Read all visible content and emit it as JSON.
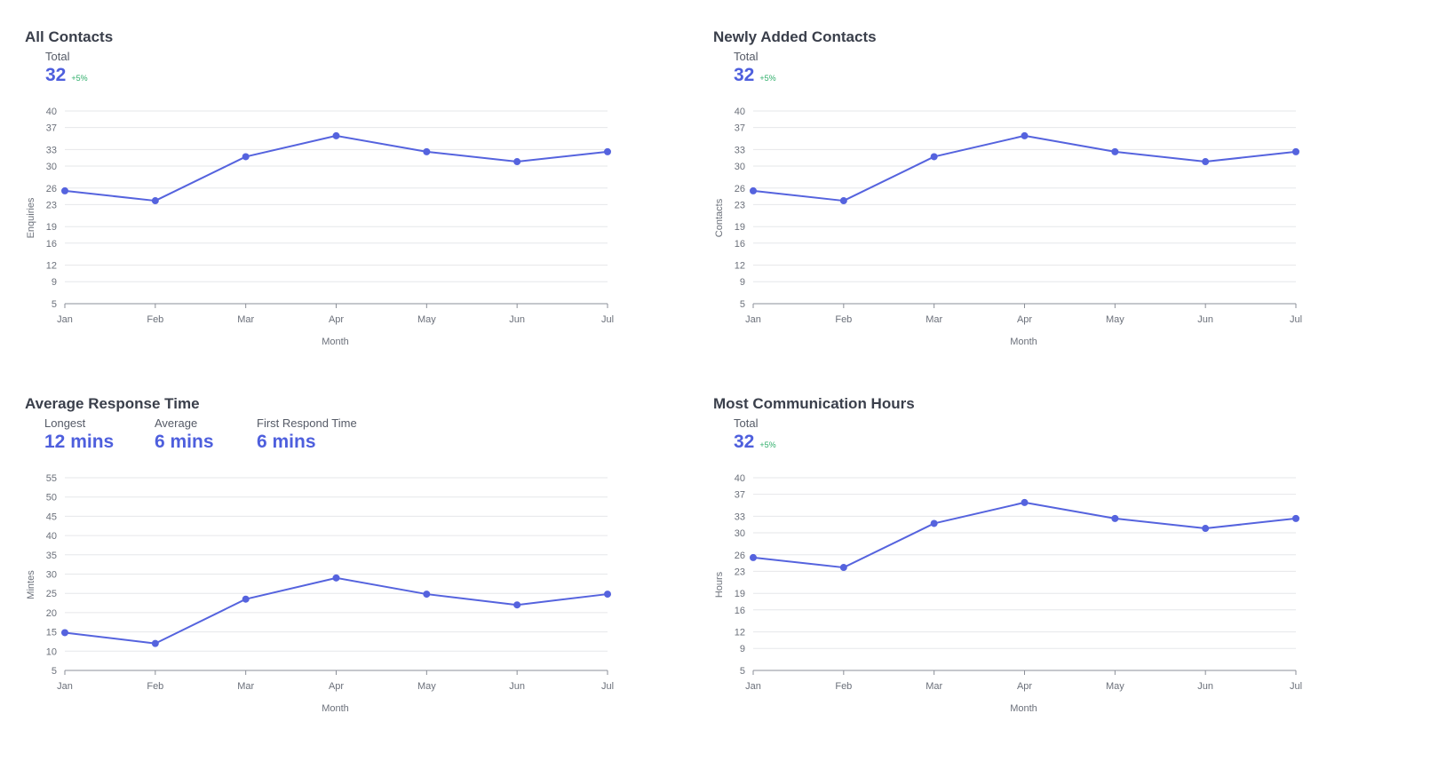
{
  "colors": {
    "line": "#5563de",
    "point": "#5563de",
    "value": "#4e5fdd",
    "change": "#2fae6a"
  },
  "panels": [
    {
      "title": "All Contacts",
      "stats": [
        {
          "label": "Total",
          "value": "32",
          "change": "+5%"
        }
      ]
    },
    {
      "title": "Newly Added Contacts",
      "stats": [
        {
          "label": "Total",
          "value": "32",
          "change": "+5%"
        }
      ]
    },
    {
      "title": "Average Response Time",
      "stats": [
        {
          "label": "Longest",
          "value": "12 mins",
          "change": ""
        },
        {
          "label": "Average",
          "value": "6 mins",
          "change": ""
        },
        {
          "label": "First Respond Time",
          "value": "6 mins",
          "change": ""
        }
      ]
    },
    {
      "title": "Most Communication Hours",
      "stats": [
        {
          "label": "Total",
          "value": "32",
          "change": "+5%"
        }
      ]
    }
  ],
  "chart_data": [
    {
      "type": "line",
      "categories": [
        "Jan",
        "Feb",
        "Mar",
        "Apr",
        "May",
        "Jun",
        "Jul"
      ],
      "values": [
        25.5,
        23.7,
        31.7,
        35.5,
        32.6,
        30.8,
        32.6
      ],
      "xlabel": "Month",
      "ylabel": "Enquiries",
      "yticks": [
        5,
        9,
        12,
        16,
        19,
        23,
        26,
        30,
        33,
        37,
        40
      ],
      "ylim": [
        5,
        40
      ],
      "grid": true
    },
    {
      "type": "line",
      "categories": [
        "Jan",
        "Feb",
        "Mar",
        "Apr",
        "May",
        "Jun",
        "Jul"
      ],
      "values": [
        25.5,
        23.7,
        31.7,
        35.5,
        32.6,
        30.8,
        32.6
      ],
      "xlabel": "Month",
      "ylabel": "Contacts",
      "yticks": [
        5,
        9,
        12,
        16,
        19,
        23,
        26,
        30,
        33,
        37,
        40
      ],
      "ylim": [
        5,
        40
      ],
      "grid": true
    },
    {
      "type": "line",
      "categories": [
        "Jan",
        "Feb",
        "Mar",
        "Apr",
        "May",
        "Jun",
        "Jul"
      ],
      "values": [
        14.8,
        12.0,
        23.5,
        29.0,
        24.8,
        22.0,
        24.8
      ],
      "xlabel": "Month",
      "ylabel": "Mintes",
      "yticks": [
        5,
        10,
        15,
        20,
        25,
        30,
        35,
        40,
        45,
        50,
        55
      ],
      "ylim": [
        5,
        55
      ],
      "grid": true
    },
    {
      "type": "line",
      "categories": [
        "Jan",
        "Feb",
        "Mar",
        "Apr",
        "May",
        "Jun",
        "Jul"
      ],
      "values": [
        25.5,
        23.7,
        31.7,
        35.5,
        32.6,
        30.8,
        32.6
      ],
      "xlabel": "Month",
      "ylabel": "Hours",
      "yticks": [
        5,
        9,
        12,
        16,
        19,
        23,
        26,
        30,
        33,
        37,
        40
      ],
      "ylim": [
        5,
        40
      ],
      "grid": true
    }
  ]
}
